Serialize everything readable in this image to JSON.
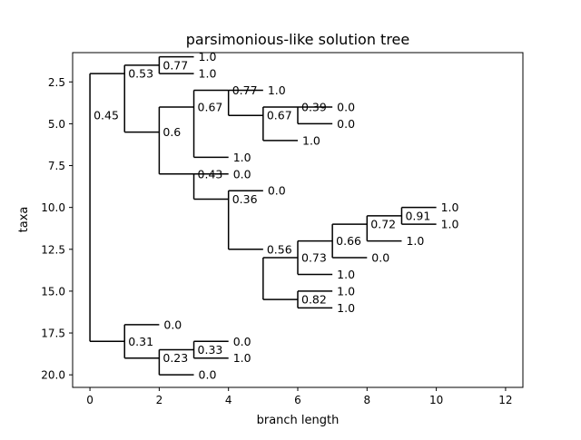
{
  "chart_data": {
    "type": "dendrogram",
    "title": "parsimonious-like solution tree",
    "xlabel": "branch length",
    "ylabel": "taxa",
    "xlim": [
      -0.5,
      12.5
    ],
    "ylim": [
      20.75,
      0.75
    ],
    "y_inverted": true,
    "grid": false,
    "x_ticks": [
      0,
      2,
      4,
      6,
      8,
      10,
      12
    ],
    "y_ticks": [
      2.5,
      5.0,
      7.5,
      10.0,
      12.5,
      15.0,
      17.5,
      20.0
    ],
    "x_tick_labels": [
      "0",
      "2",
      "4",
      "6",
      "8",
      "10",
      "12"
    ],
    "y_tick_labels": [
      "2.5",
      "5.0",
      "7.5",
      "10.0",
      "12.5",
      "15.0",
      "17.5",
      "20.0"
    ],
    "line_color": "#000000",
    "nodes": [
      {
        "id": "n0",
        "x": 0,
        "y": 4.5,
        "label": "0.45",
        "children": [
          "n1",
          "n14"
        ]
      },
      {
        "id": "n1",
        "x": 1,
        "y": 2.0,
        "label": "0.53",
        "children": [
          "n2",
          "n3"
        ]
      },
      {
        "id": "n2",
        "x": 2,
        "y": 1.5,
        "label": "0.77",
        "children": [
          "L1",
          "L2"
        ]
      },
      {
        "id": "n3",
        "x": 2,
        "y": 5.5,
        "label": "0.6",
        "children": [
          "n4",
          "n7"
        ]
      },
      {
        "id": "n4",
        "x": 3,
        "y": 4.0,
        "label": "0.67",
        "children": [
          "n5",
          "L7"
        ]
      },
      {
        "id": "n5",
        "x": 4,
        "y": 3.0,
        "label": "0.77",
        "children": [
          "L3",
          "n6"
        ]
      },
      {
        "id": "n6",
        "x": 5,
        "y": 4.5,
        "label": "0.67",
        "children": [
          "n6b",
          "L6"
        ]
      },
      {
        "id": "n6b",
        "x": 6,
        "y": 4.0,
        "label": "0.39",
        "children": [
          "L4",
          "L5"
        ]
      },
      {
        "id": "n7",
        "x": 3,
        "y": 8.0,
        "label": "0.43",
        "children": [
          "L8",
          "n8"
        ]
      },
      {
        "id": "n8",
        "x": 4,
        "y": 9.5,
        "label": "0.36",
        "children": [
          "L9",
          "n9"
        ]
      },
      {
        "id": "n9",
        "x": 5,
        "y": 12.5,
        "label": "0.56",
        "children": [
          "n10",
          "n13"
        ]
      },
      {
        "id": "n10",
        "x": 6,
        "y": 13.0,
        "label": "0.73",
        "children": [
          "n11",
          "L14"
        ]
      },
      {
        "id": "n11",
        "x": 7,
        "y": 12.0,
        "label": "0.66",
        "children": [
          "n12",
          "L13"
        ]
      },
      {
        "id": "n12",
        "x": 8,
        "y": 11.0,
        "label": "0.72",
        "children": [
          "n12b",
          "L12"
        ]
      },
      {
        "id": "n12b",
        "x": 9,
        "y": 10.5,
        "label": "0.91",
        "children": [
          "L10",
          "L11"
        ]
      },
      {
        "id": "n13",
        "x": 6,
        "y": 15.5,
        "label": "0.82",
        "children": [
          "L15",
          "L16"
        ]
      },
      {
        "id": "n14",
        "x": 1,
        "y": 18.0,
        "label": "0.31",
        "children": [
          "L17",
          "n15"
        ]
      },
      {
        "id": "n15",
        "x": 2,
        "y": 19.0,
        "label": "0.23",
        "children": [
          "n16",
          "L20"
        ]
      },
      {
        "id": "n16",
        "x": 3,
        "y": 18.5,
        "label": "0.33",
        "children": [
          "L18",
          "L19"
        ]
      }
    ],
    "leaves": [
      {
        "id": "L1",
        "x": 3,
        "y": 1,
        "label": "1.0"
      },
      {
        "id": "L2",
        "x": 3,
        "y": 2,
        "label": "1.0"
      },
      {
        "id": "L3",
        "x": 5,
        "y": 3,
        "label": "1.0"
      },
      {
        "id": "L4",
        "x": 7,
        "y": 4,
        "label": "0.0"
      },
      {
        "id": "L5",
        "x": 7,
        "y": 5,
        "label": "0.0"
      },
      {
        "id": "L6",
        "x": 6,
        "y": 6,
        "label": "1.0"
      },
      {
        "id": "L7",
        "x": 4,
        "y": 7,
        "label": "1.0"
      },
      {
        "id": "L8",
        "x": 4,
        "y": 8,
        "label": "0.0"
      },
      {
        "id": "L9",
        "x": 5,
        "y": 9,
        "label": "0.0"
      },
      {
        "id": "L10",
        "x": 10,
        "y": 10,
        "label": "1.0"
      },
      {
        "id": "L11",
        "x": 10,
        "y": 11,
        "label": "1.0"
      },
      {
        "id": "L12",
        "x": 9,
        "y": 12,
        "label": "1.0"
      },
      {
        "id": "L13",
        "x": 8,
        "y": 13,
        "label": "0.0"
      },
      {
        "id": "L14",
        "x": 7,
        "y": 14,
        "label": "1.0"
      },
      {
        "id": "L15",
        "x": 7,
        "y": 15,
        "label": "1.0"
      },
      {
        "id": "L16",
        "x": 7,
        "y": 16,
        "label": "1.0"
      },
      {
        "id": "L17",
        "x": 2,
        "y": 17,
        "label": "0.0"
      },
      {
        "id": "L18",
        "x": 4,
        "y": 18,
        "label": "0.0"
      },
      {
        "id": "L19",
        "x": 4,
        "y": 19,
        "label": "1.0"
      },
      {
        "id": "L20",
        "x": 3,
        "y": 20,
        "label": "0.0"
      }
    ]
  }
}
